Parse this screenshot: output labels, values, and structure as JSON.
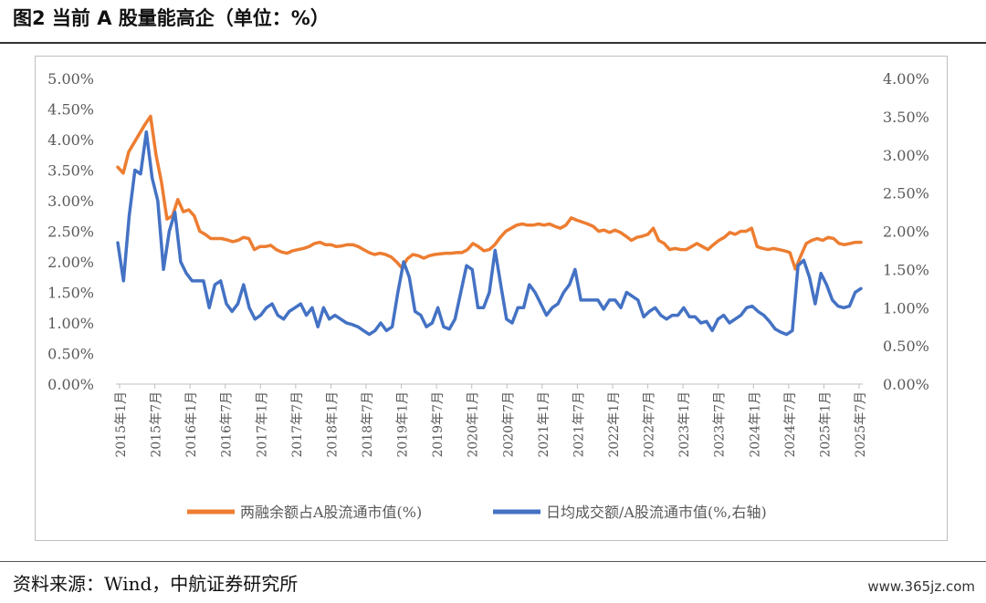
{
  "header": {
    "title": "图2 当前 A 股量能高企（单位：%）"
  },
  "footer": {
    "source": "资料来源：Wind，中航证券研究所",
    "watermark": "www.365jz.com"
  },
  "chart_data": {
    "type": "line",
    "title": "",
    "xlabel": "",
    "ylabel": "",
    "x_tick_labels": [
      "2015年1月",
      "2015年7月",
      "2016年1月",
      "2016年7月",
      "2017年1月",
      "2017年7月",
      "2018年1月",
      "2018年7月",
      "2019年1月",
      "2019年7月",
      "2020年1月",
      "2020年7月",
      "2021年1月",
      "2021年7月",
      "2022年1月",
      "2022年7月",
      "2023年1月",
      "2023年7月",
      "2024年1月",
      "2024年7月",
      "2025年1月",
      "2025年7月"
    ],
    "y_left": {
      "ylim": [
        0,
        5
      ],
      "ticks": [
        "0.00%",
        "0.50%",
        "1.00%",
        "1.50%",
        "2.00%",
        "2.50%",
        "3.00%",
        "3.50%",
        "4.00%",
        "4.50%",
        "5.00%"
      ]
    },
    "y_right": {
      "ylim": [
        0,
        4
      ],
      "ticks": [
        "0.00%",
        "0.50%",
        "1.00%",
        "1.50%",
        "2.00%",
        "2.50%",
        "3.00%",
        "3.50%",
        "4.00%"
      ]
    },
    "legend_position": "bottom",
    "grid": false,
    "series": [
      {
        "name": "两融余额占A股流通市值(%)",
        "axis": "left",
        "color": "#ED7D31",
        "values": [
          3.55,
          3.45,
          3.8,
          3.95,
          4.1,
          4.25,
          4.38,
          3.75,
          3.3,
          2.7,
          2.75,
          3.02,
          2.82,
          2.85,
          2.75,
          2.5,
          2.45,
          2.38,
          2.38,
          2.38,
          2.36,
          2.33,
          2.35,
          2.4,
          2.38,
          2.2,
          2.25,
          2.25,
          2.27,
          2.2,
          2.16,
          2.14,
          2.18,
          2.2,
          2.22,
          2.25,
          2.3,
          2.32,
          2.28,
          2.28,
          2.25,
          2.26,
          2.28,
          2.28,
          2.25,
          2.2,
          2.15,
          2.12,
          2.14,
          2.12,
          2.08,
          2.0,
          1.9,
          2.05,
          2.12,
          2.1,
          2.06,
          2.1,
          2.12,
          2.13,
          2.14,
          2.14,
          2.15,
          2.15,
          2.2,
          2.3,
          2.25,
          2.18,
          2.2,
          2.28,
          2.4,
          2.5,
          2.55,
          2.6,
          2.62,
          2.6,
          2.6,
          2.62,
          2.6,
          2.62,
          2.58,
          2.55,
          2.6,
          2.72,
          2.68,
          2.65,
          2.62,
          2.58,
          2.5,
          2.52,
          2.48,
          2.52,
          2.48,
          2.42,
          2.35,
          2.4,
          2.42,
          2.45,
          2.55,
          2.35,
          2.3,
          2.2,
          2.22,
          2.2,
          2.2,
          2.25,
          2.3,
          2.25,
          2.2,
          2.28,
          2.35,
          2.4,
          2.48,
          2.45,
          2.5,
          2.5,
          2.55,
          2.25,
          2.22,
          2.2,
          2.22,
          2.2,
          2.18,
          2.15,
          1.88,
          2.1,
          2.3,
          2.35,
          2.38,
          2.35,
          2.4,
          2.38,
          2.3,
          2.28,
          2.3,
          2.32,
          2.32
        ]
      },
      {
        "name": "日均成交额/A股流通市值(%,右轴)",
        "axis": "right",
        "color": "#4472C4",
        "values": [
          1.85,
          1.35,
          2.2,
          2.8,
          2.75,
          3.3,
          2.7,
          2.4,
          1.5,
          2.0,
          2.25,
          1.6,
          1.45,
          1.35,
          1.35,
          1.35,
          1.0,
          1.3,
          1.35,
          1.05,
          0.95,
          1.05,
          1.3,
          1.0,
          0.85,
          0.9,
          1.0,
          1.05,
          0.9,
          0.85,
          0.95,
          1.0,
          1.05,
          0.9,
          1.0,
          0.75,
          1.0,
          0.85,
          0.9,
          0.85,
          0.8,
          0.78,
          0.75,
          0.7,
          0.65,
          0.7,
          0.8,
          0.7,
          0.75,
          1.2,
          1.6,
          1.4,
          0.95,
          0.9,
          0.75,
          0.8,
          1.0,
          0.75,
          0.72,
          0.85,
          1.2,
          1.55,
          1.5,
          1.0,
          1.0,
          1.2,
          1.75,
          1.3,
          0.85,
          0.8,
          1.0,
          1.0,
          1.3,
          1.2,
          1.05,
          0.9,
          1.0,
          1.05,
          1.2,
          1.3,
          1.5,
          1.1,
          1.1,
          1.1,
          1.1,
          0.98,
          1.1,
          1.1,
          1.0,
          1.2,
          1.15,
          1.1,
          0.88,
          0.95,
          1.0,
          0.9,
          0.85,
          0.9,
          0.9,
          1.0,
          0.88,
          0.88,
          0.8,
          0.82,
          0.7,
          0.85,
          0.9,
          0.8,
          0.85,
          0.9,
          1.0,
          1.02,
          0.95,
          0.9,
          0.82,
          0.72,
          0.68,
          0.65,
          0.7,
          1.55,
          1.62,
          1.4,
          1.05,
          1.45,
          1.3,
          1.1,
          1.02,
          1.0,
          1.02,
          1.2,
          1.25
        ]
      }
    ]
  }
}
